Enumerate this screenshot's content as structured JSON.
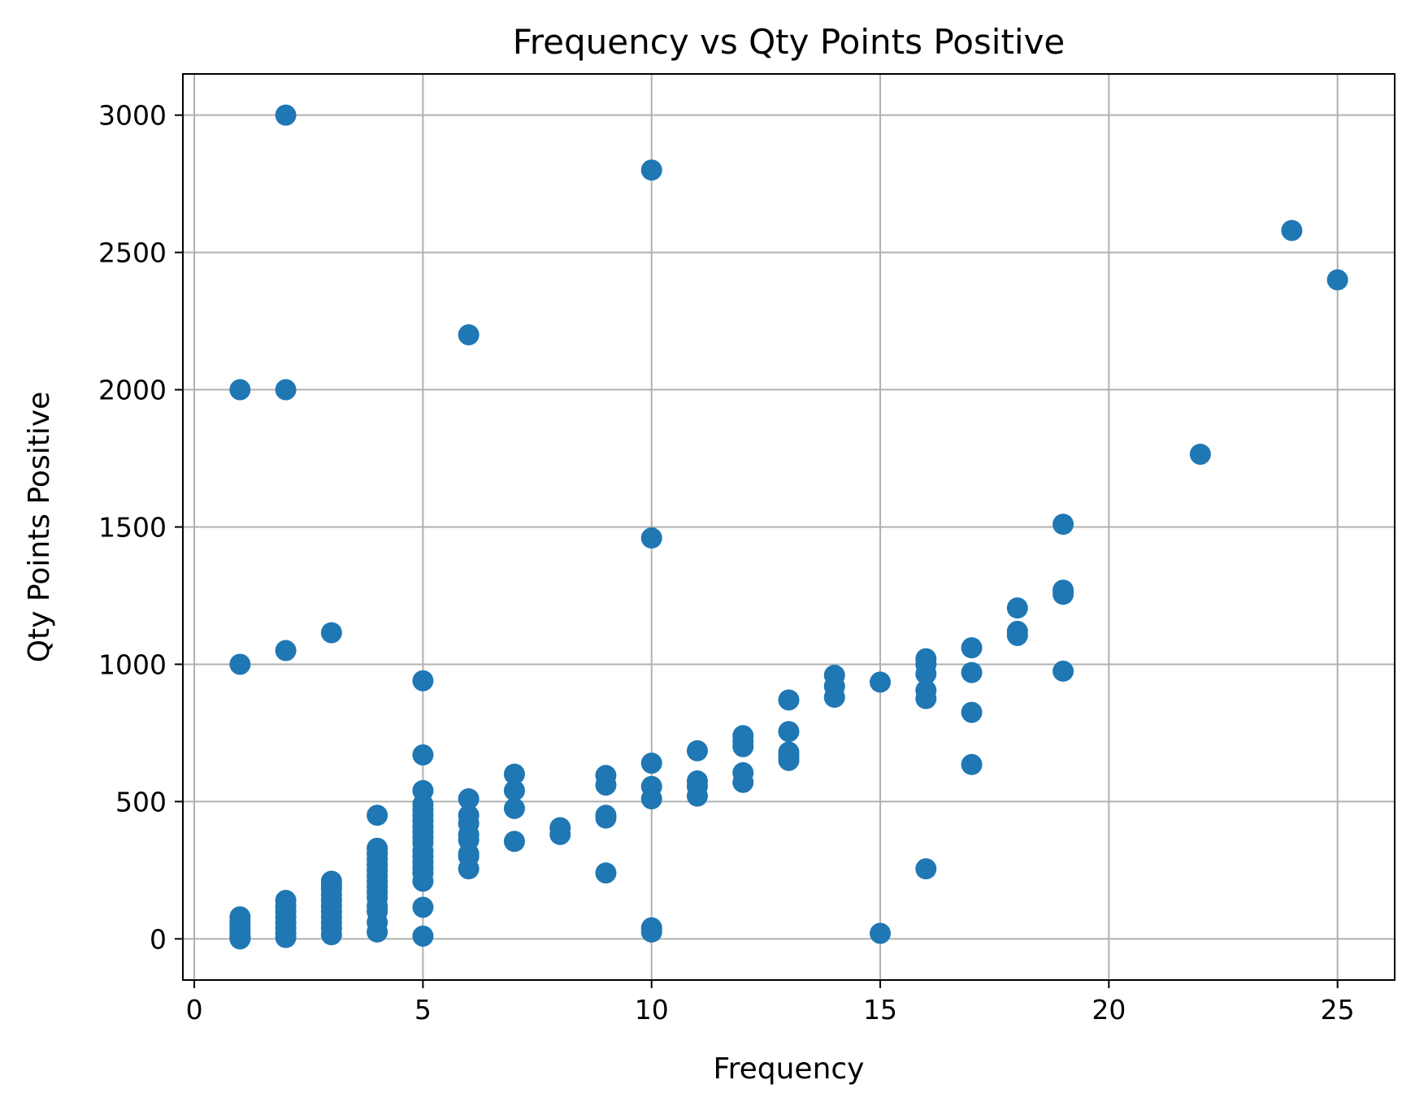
{
  "chart_data": {
    "type": "scatter",
    "title": "Frequency vs Qty Points Positive",
    "xlabel": "Frequency",
    "ylabel": "Qty Points Positive",
    "xlim": [
      -0.25,
      26.25
    ],
    "ylim": [
      -150,
      3150
    ],
    "xticks": [
      0,
      5,
      10,
      15,
      20,
      25
    ],
    "yticks": [
      0,
      500,
      1000,
      1500,
      2000,
      2500,
      3000
    ],
    "grid": true,
    "legend": "none",
    "marker_color": "#1f77b4",
    "series": [
      {
        "points": [
          [
            1,
            2000
          ],
          [
            1,
            1000
          ],
          [
            1,
            80
          ],
          [
            1,
            60
          ],
          [
            1,
            45
          ],
          [
            1,
            30
          ],
          [
            1,
            20
          ],
          [
            1,
            10
          ],
          [
            1,
            5
          ],
          [
            1,
            0
          ],
          [
            2,
            3000
          ],
          [
            2,
            2000
          ],
          [
            2,
            1050
          ],
          [
            2,
            140
          ],
          [
            2,
            120
          ],
          [
            2,
            100
          ],
          [
            2,
            80
          ],
          [
            2,
            60
          ],
          [
            2,
            40
          ],
          [
            2,
            20
          ],
          [
            2,
            5
          ],
          [
            3,
            1115
          ],
          [
            3,
            210
          ],
          [
            3,
            195
          ],
          [
            3,
            180
          ],
          [
            3,
            160
          ],
          [
            3,
            140
          ],
          [
            3,
            120
          ],
          [
            3,
            100
          ],
          [
            3,
            80
          ],
          [
            3,
            60
          ],
          [
            3,
            40
          ],
          [
            3,
            15
          ],
          [
            4,
            450
          ],
          [
            4,
            330
          ],
          [
            4,
            310
          ],
          [
            4,
            290
          ],
          [
            4,
            270
          ],
          [
            4,
            250
          ],
          [
            4,
            230
          ],
          [
            4,
            210
          ],
          [
            4,
            190
          ],
          [
            4,
            170
          ],
          [
            4,
            150
          ],
          [
            4,
            120
          ],
          [
            4,
            100
          ],
          [
            4,
            60
          ],
          [
            4,
            25
          ],
          [
            5,
            940
          ],
          [
            5,
            670
          ],
          [
            5,
            540
          ],
          [
            5,
            490
          ],
          [
            5,
            470
          ],
          [
            5,
            450
          ],
          [
            5,
            430
          ],
          [
            5,
            410
          ],
          [
            5,
            390
          ],
          [
            5,
            370
          ],
          [
            5,
            350
          ],
          [
            5,
            320
          ],
          [
            5,
            300
          ],
          [
            5,
            280
          ],
          [
            5,
            260
          ],
          [
            5,
            240
          ],
          [
            5,
            210
          ],
          [
            5,
            115
          ],
          [
            5,
            10
          ],
          [
            6,
            2200
          ],
          [
            6,
            510
          ],
          [
            6,
            450
          ],
          [
            6,
            420
          ],
          [
            6,
            380
          ],
          [
            6,
            360
          ],
          [
            6,
            310
          ],
          [
            6,
            300
          ],
          [
            6,
            255
          ],
          [
            7,
            600
          ],
          [
            7,
            540
          ],
          [
            7,
            475
          ],
          [
            7,
            355
          ],
          [
            8,
            405
          ],
          [
            8,
            380
          ],
          [
            9,
            595
          ],
          [
            9,
            560
          ],
          [
            9,
            450
          ],
          [
            9,
            440
          ],
          [
            9,
            240
          ],
          [
            10,
            2800
          ],
          [
            10,
            1460
          ],
          [
            10,
            640
          ],
          [
            10,
            555
          ],
          [
            10,
            510
          ],
          [
            10,
            40
          ],
          [
            10,
            25
          ],
          [
            11,
            685
          ],
          [
            11,
            575
          ],
          [
            11,
            555
          ],
          [
            11,
            520
          ],
          [
            12,
            740
          ],
          [
            12,
            720
          ],
          [
            12,
            700
          ],
          [
            12,
            605
          ],
          [
            12,
            570
          ],
          [
            13,
            870
          ],
          [
            13,
            755
          ],
          [
            13,
            680
          ],
          [
            13,
            665
          ],
          [
            13,
            650
          ],
          [
            14,
            960
          ],
          [
            14,
            920
          ],
          [
            14,
            880
          ],
          [
            15,
            935
          ],
          [
            15,
            20
          ],
          [
            16,
            1020
          ],
          [
            16,
            1000
          ],
          [
            16,
            965
          ],
          [
            16,
            905
          ],
          [
            16,
            875
          ],
          [
            16,
            255
          ],
          [
            17,
            1060
          ],
          [
            17,
            970
          ],
          [
            17,
            825
          ],
          [
            17,
            635
          ],
          [
            18,
            1205
          ],
          [
            18,
            1120
          ],
          [
            18,
            1105
          ],
          [
            19,
            1510
          ],
          [
            19,
            1270
          ],
          [
            19,
            1255
          ],
          [
            19,
            975
          ],
          [
            22,
            1765
          ],
          [
            24,
            2580
          ],
          [
            25,
            2400
          ]
        ]
      }
    ]
  }
}
